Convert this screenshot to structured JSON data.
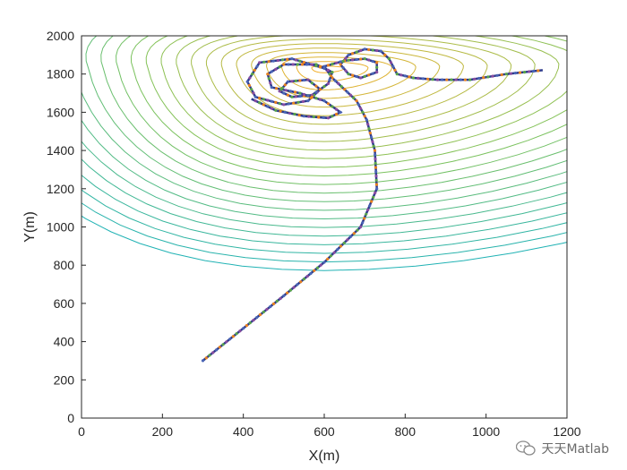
{
  "chart_data": {
    "type": "line",
    "title": "",
    "xlabel": "X(m)",
    "ylabel": "Y(m)",
    "xlim": [
      0,
      1200
    ],
    "ylim": [
      0,
      2000
    ],
    "xticks": [
      0,
      200,
      400,
      600,
      800,
      1000,
      1200
    ],
    "yticks": [
      0,
      200,
      400,
      600,
      800,
      1000,
      1200,
      1400,
      1600,
      1800,
      2000
    ],
    "grid": false,
    "legend": "none",
    "contour_peak": {
      "x": 600,
      "y": 1830
    },
    "contour_colors": {
      "low": "#20b2b4",
      "mid": "#7fc35a",
      "high": "#f2b02b"
    },
    "series": [
      {
        "type": "path",
        "color": "#2d3a8c",
        "marker_colors": [
          "#4b66b6",
          "#e9821f",
          "#5aa64a",
          "#8a4da0"
        ],
        "points": [
          [
            300,
            300
          ],
          [
            400,
            470
          ],
          [
            500,
            640
          ],
          [
            600,
            815
          ],
          [
            690,
            1000
          ],
          [
            730,
            1200
          ],
          [
            725,
            1400
          ],
          [
            705,
            1560
          ],
          [
            680,
            1660
          ],
          [
            650,
            1720
          ],
          [
            620,
            1780
          ],
          [
            600,
            1840
          ],
          [
            650,
            1870
          ],
          [
            700,
            1880
          ],
          [
            730,
            1860
          ],
          [
            730,
            1810
          ],
          [
            690,
            1780
          ],
          [
            660,
            1800
          ],
          [
            640,
            1850
          ],
          [
            660,
            1900
          ],
          [
            700,
            1930
          ],
          [
            740,
            1920
          ],
          [
            760,
            1880
          ],
          [
            780,
            1800
          ],
          [
            820,
            1780
          ],
          [
            880,
            1770
          ],
          [
            960,
            1770
          ],
          [
            1050,
            1800
          ],
          [
            1140,
            1820
          ]
        ]
      },
      {
        "type": "loops",
        "color": "#2d3a8c",
        "points": [
          [
            600,
            1830
          ],
          [
            520,
            1880
          ],
          [
            440,
            1860
          ],
          [
            410,
            1760
          ],
          [
            430,
            1680
          ],
          [
            500,
            1640
          ],
          [
            560,
            1660
          ],
          [
            590,
            1720
          ],
          [
            560,
            1770
          ],
          [
            510,
            1760
          ],
          [
            490,
            1710
          ],
          [
            520,
            1680
          ],
          [
            570,
            1690
          ],
          [
            610,
            1750
          ],
          [
            620,
            1810
          ],
          [
            580,
            1850
          ],
          [
            500,
            1850
          ],
          [
            460,
            1800
          ],
          [
            470,
            1730
          ],
          [
            540,
            1700
          ],
          [
            600,
            1660
          ],
          [
            640,
            1600
          ],
          [
            610,
            1570
          ],
          [
            550,
            1580
          ],
          [
            480,
            1610
          ],
          [
            420,
            1670
          ]
        ]
      }
    ]
  },
  "watermark": {
    "text": "天天Matlab",
    "icon": "wechat-icon"
  }
}
